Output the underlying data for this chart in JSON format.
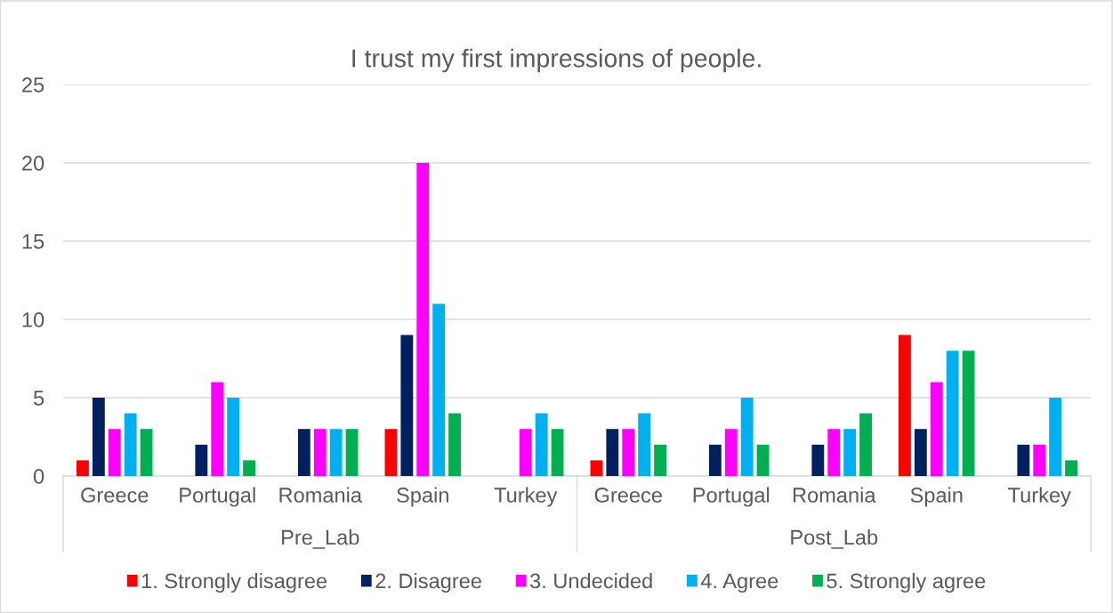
{
  "chart_data": {
    "type": "bar",
    "title": "I trust my first impressions of people.",
    "categories": [
      "Greece",
      "Portugal",
      "Romania",
      "Spain",
      "Turkey",
      "Greece",
      "Portugal",
      "Romania",
      "Spain",
      "Turkey"
    ],
    "annotations": [
      "Pre_Lab",
      "Post_Lab"
    ],
    "series": [
      {
        "name": "1. Strongly disagree",
        "color": "#ff0000",
        "values": [
          1,
          null,
          null,
          3,
          null,
          1,
          null,
          null,
          9,
          null
        ]
      },
      {
        "name": "2. Disagree",
        "color": "#002060",
        "values": [
          5,
          2,
          3,
          9,
          null,
          3,
          2,
          2,
          3,
          2
        ]
      },
      {
        "name": "3. Undecided",
        "color": "#ff00ff",
        "values": [
          3,
          6,
          3,
          20,
          3,
          3,
          3,
          3,
          6,
          2
        ]
      },
      {
        "name": "4. Agree",
        "color": "#00b0f0",
        "values": [
          4,
          5,
          3,
          11,
          4,
          4,
          5,
          3,
          8,
          5
        ]
      },
      {
        "name": "5. Strongly agree",
        "color": "#00b050",
        "values": [
          3,
          1,
          3,
          4,
          3,
          2,
          2,
          4,
          8,
          1
        ]
      }
    ],
    "ylim": [
      0,
      25
    ],
    "yticks": [
      0,
      5,
      10,
      15,
      20,
      25
    ],
    "grid": "y",
    "legend": "bottom"
  }
}
